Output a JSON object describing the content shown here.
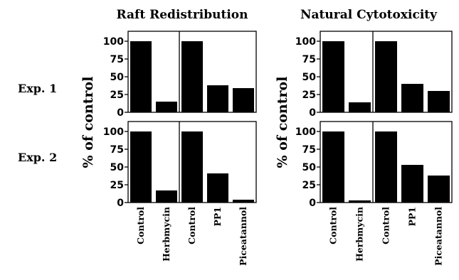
{
  "chart_data": [
    {
      "type": "bar",
      "title": "Raft Redistribution",
      "ylabel": "% of control",
      "row_label": "Exp. 1",
      "categories": [
        "Control",
        "Herbmycin",
        "Control",
        "PP1",
        "Piceatannol"
      ],
      "values": [
        100,
        15,
        100,
        38,
        34
      ],
      "ylim": [
        0,
        100
      ],
      "yticks": [
        "0",
        "25",
        "50",
        "75",
        "100"
      ]
    },
    {
      "type": "bar",
      "title": "Natural Cytotoxicity",
      "ylabel": "% of control",
      "row_label": "Exp. 1",
      "categories": [
        "Control",
        "Herbmycin",
        "Control",
        "PP1",
        "Piceatannol"
      ],
      "values": [
        100,
        14,
        100,
        40,
        30
      ],
      "ylim": [
        0,
        100
      ],
      "yticks": [
        "0",
        "25",
        "50",
        "75",
        "100"
      ]
    },
    {
      "type": "bar",
      "title": "Raft Redistribution",
      "ylabel": "% of control",
      "row_label": "Exp. 2",
      "categories": [
        "Control",
        "Herbmycin",
        "Control",
        "PP1",
        "Piceatannol"
      ],
      "values": [
        100,
        17,
        100,
        41,
        4
      ],
      "ylim": [
        0,
        100
      ],
      "yticks": [
        "0",
        "25",
        "50",
        "75",
        "100"
      ]
    },
    {
      "type": "bar",
      "title": "Natural Cytotoxicity",
      "ylabel": "% of control",
      "row_label": "Exp. 2",
      "categories": [
        "Control",
        "Herbmycin",
        "Control",
        "PP1",
        "Piceatannol"
      ],
      "values": [
        100,
        3,
        100,
        53,
        38
      ],
      "ylim": [
        0,
        100
      ],
      "yticks": [
        "0",
        "25",
        "50",
        "75",
        "100"
      ]
    }
  ],
  "figure": {
    "col_titles": [
      "Raft Redistribution",
      "Natural Cytotoxicity"
    ],
    "row_labels": [
      "Exp. 1",
      "Exp. 2"
    ],
    "ylabel": "% of control",
    "bar_color": "#000000"
  }
}
